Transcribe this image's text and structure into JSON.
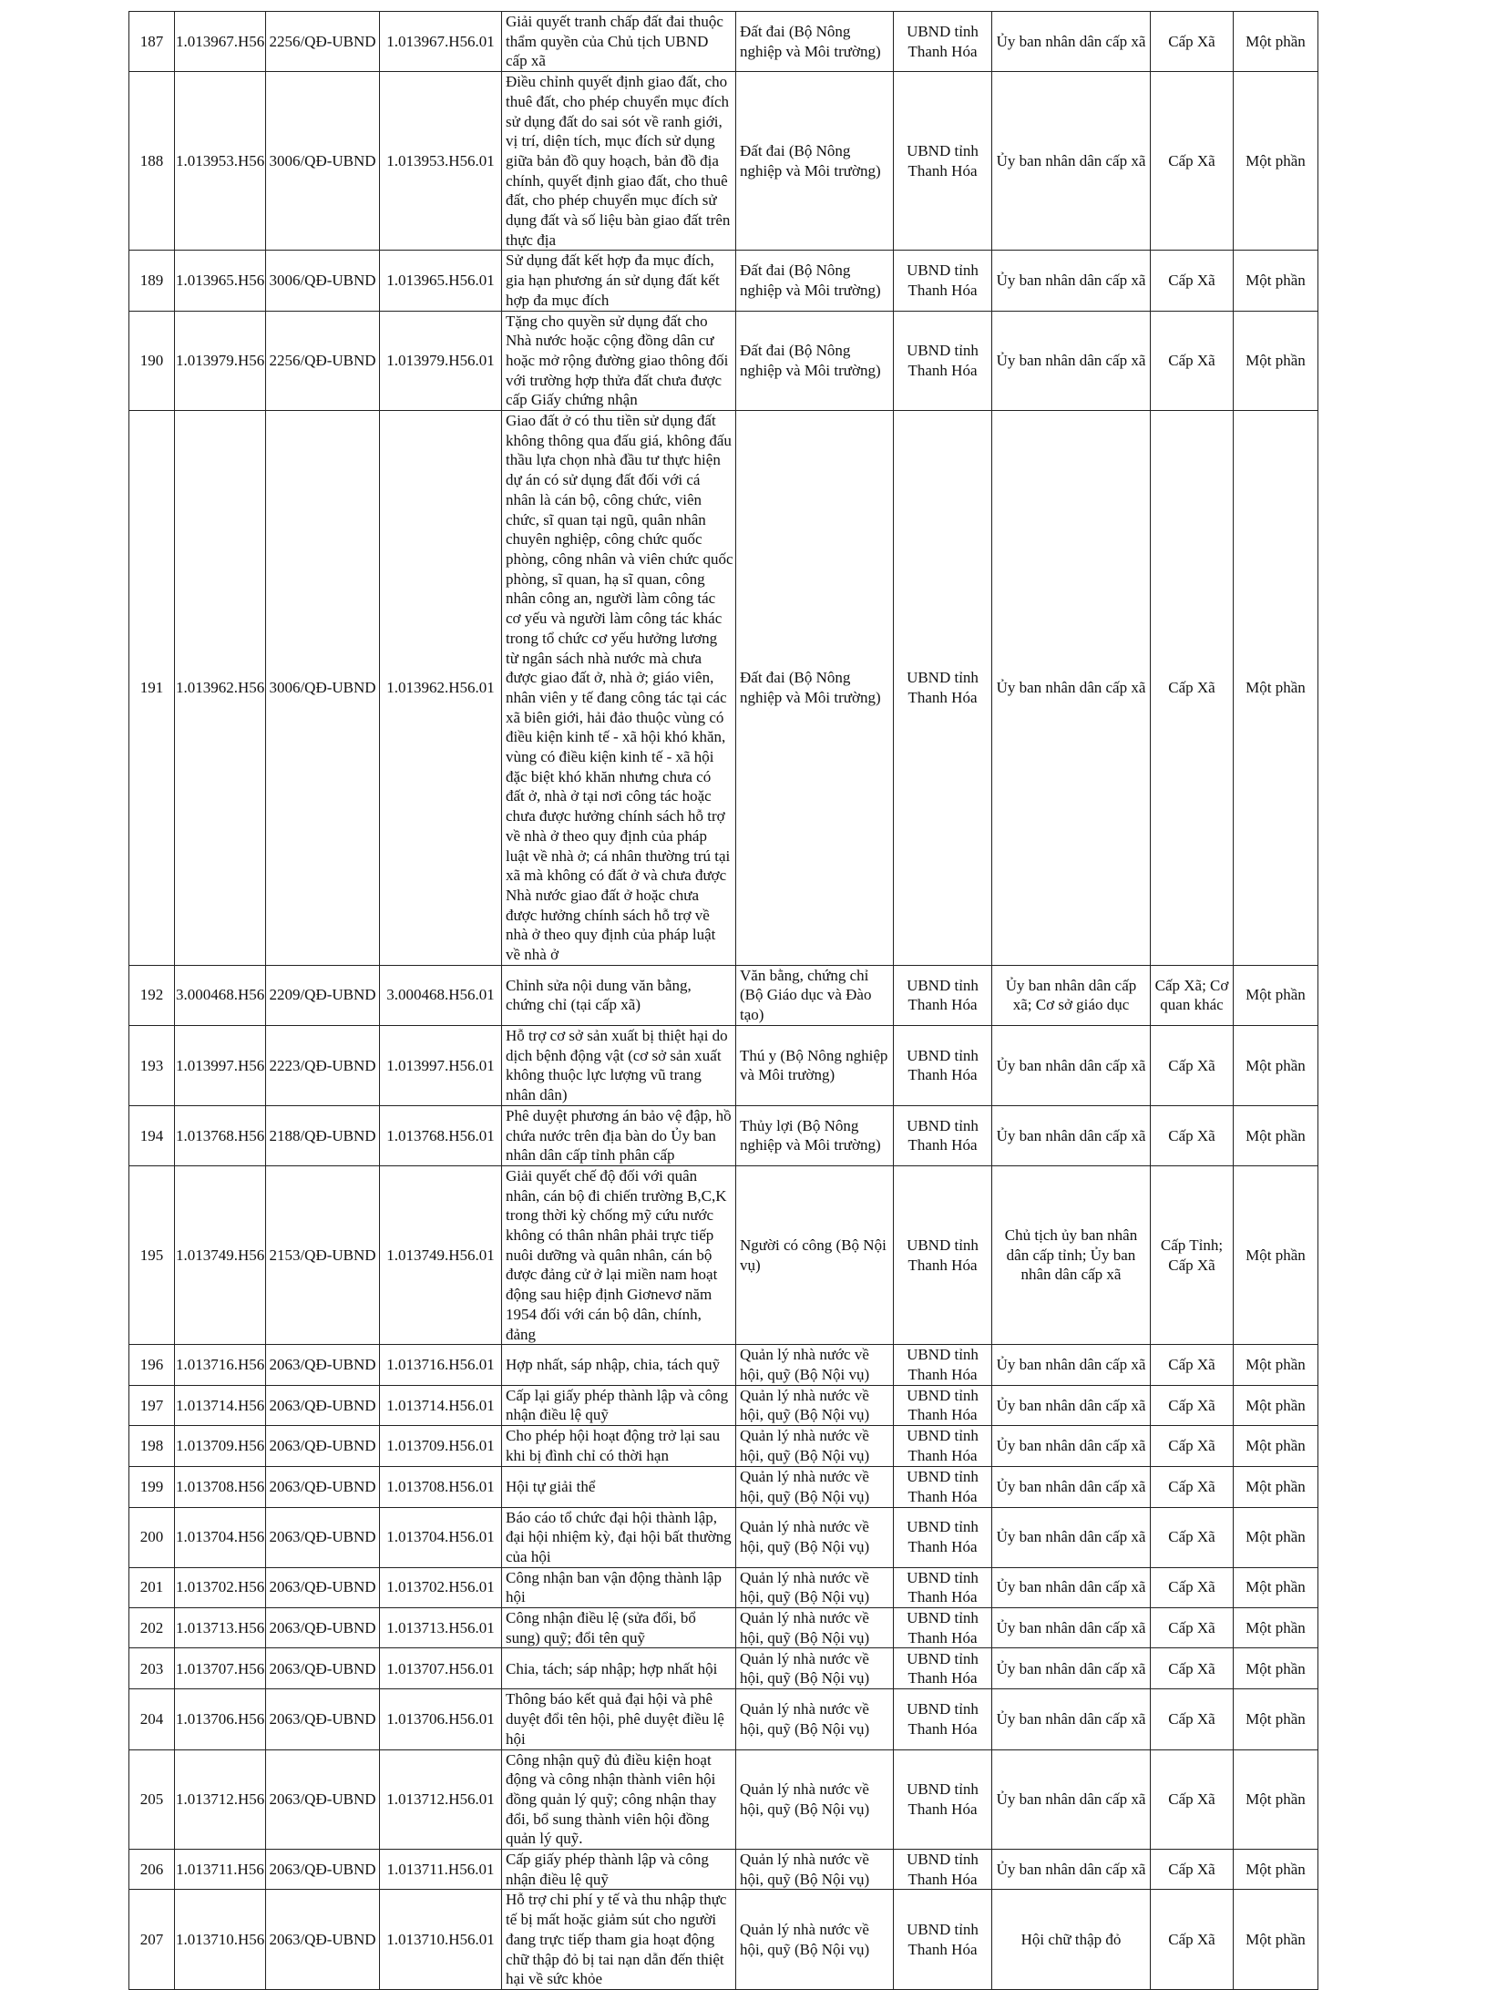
{
  "rows": [
    {
      "stt": "187",
      "code": "1.013967.H56",
      "decision": "2256/QĐ-UBND",
      "code2": "1.013967.H56.01",
      "name": "Giải quyết tranh chấp đất đai thuộc thẩm quyền của Chủ tịch UBND cấp xã",
      "field": "Đất đai (Bộ Nông nghiệp và Môi trường)",
      "agency": "UBND tỉnh Thanh Hóa",
      "executor": "Ủy ban nhân dân cấp xã",
      "level": "Cấp Xã",
      "scope": "Một phần"
    },
    {
      "stt": "188",
      "code": "1.013953.H56",
      "decision": "3006/QĐ-UBND",
      "code2": "1.013953.H56.01",
      "name": "Điều chỉnh quyết định giao đất, cho thuê đất, cho phép chuyển mục đích sử dụng đất do sai sót về ranh giới, vị trí, diện tích, mục đích sử dụng giữa bản đồ quy hoạch, bản đồ địa chính, quyết định giao đất, cho thuê đất, cho phép chuyển mục đích sử dụng đất và số liệu bàn giao đất trên thực địa",
      "field": "Đất đai (Bộ Nông nghiệp và Môi trường)",
      "agency": "UBND tỉnh Thanh Hóa",
      "executor": "Ủy ban nhân dân cấp xã",
      "level": "Cấp Xã",
      "scope": "Một phần"
    },
    {
      "stt": "189",
      "code": "1.013965.H56",
      "decision": "3006/QĐ-UBND",
      "code2": "1.013965.H56.01",
      "name": "Sử dụng đất kết hợp đa mục đích, gia hạn phương án sử dụng đất kết hợp đa mục đích",
      "field": "Đất đai (Bộ Nông nghiệp và Môi trường)",
      "agency": "UBND tỉnh Thanh Hóa",
      "executor": "Ủy ban nhân dân cấp xã",
      "level": "Cấp Xã",
      "scope": "Một phần"
    },
    {
      "stt": "190",
      "code": "1.013979.H56",
      "decision": "2256/QĐ-UBND",
      "code2": "1.013979.H56.01",
      "name": "Tặng cho quyền sử dụng đất cho Nhà nước hoặc cộng đồng dân cư hoặc mở rộng đường giao thông đối với trường hợp thửa đất chưa được cấp Giấy chứng nhận",
      "field": "Đất đai (Bộ Nông nghiệp và Môi trường)",
      "agency": "UBND tỉnh Thanh Hóa",
      "executor": "Ủy ban nhân dân cấp xã",
      "level": "Cấp Xã",
      "scope": "Một phần"
    },
    {
      "stt": "191",
      "code": "1.013962.H56",
      "decision": "3006/QĐ-UBND",
      "code2": "1.013962.H56.01",
      "name": "Giao đất ở có thu tiền sử dụng đất không thông qua đấu giá, không đấu thầu lựa chọn nhà đầu tư thực hiện dự án có sử dụng đất đối với cá nhân là cán bộ, công chức, viên chức, sĩ quan tại ngũ, quân nhân chuyên nghiệp, công chức quốc phòng, công nhân và viên chức quốc phòng, sĩ quan, hạ sĩ quan, công nhân công an, người làm công tác cơ yếu và người làm công tác khác trong tổ chức cơ yếu hưởng lương từ ngân sách nhà nước mà chưa được giao đất ở, nhà ở; giáo viên, nhân viên y tế đang công tác tại các xã biên giới, hải đảo thuộc vùng có điều kiện kinh tế - xã hội khó khăn, vùng có điều kiện kinh tế - xã hội đặc biệt khó khăn nhưng chưa có đất ở, nhà ở tại nơi công tác hoặc chưa được hưởng chính sách hỗ trợ về nhà ở theo quy định của pháp luật về nhà ở; cá nhân thường trú tại xã mà không có đất ở và chưa được Nhà nước giao đất ở hoặc chưa được hưởng chính sách hỗ trợ về nhà ở theo quy định của pháp luật về nhà ở",
      "field": "Đất đai (Bộ Nông nghiệp và Môi trường)",
      "agency": "UBND tỉnh Thanh Hóa",
      "executor": "Ủy ban nhân dân cấp xã",
      "level": "Cấp Xã",
      "scope": "Một phần"
    },
    {
      "stt": "192",
      "code": "3.000468.H56",
      "decision": "2209/QĐ-UBND",
      "code2": "3.000468.H56.01",
      "name": "Chỉnh sửa nội dung văn bằng, chứng chỉ (tại cấp xã)",
      "field": "Văn bằng, chứng chỉ (Bộ Giáo dục và Đào tạo)",
      "agency": "UBND tỉnh Thanh Hóa",
      "executor": "Ủy ban nhân dân cấp xã; Cơ sở giáo dục",
      "level": "Cấp Xã; Cơ quan khác",
      "scope": "Một phần"
    },
    {
      "stt": "193",
      "code": "1.013997.H56",
      "decision": "2223/QĐ-UBND",
      "code2": "1.013997.H56.01",
      "name": "Hỗ trợ cơ sở sản xuất bị thiệt hại do dịch bệnh động vật (cơ sở sản xuất không thuộc lực lượng vũ trang nhân dân)",
      "field": "Thú y (Bộ Nông nghiệp và Môi trường)",
      "agency": "UBND tỉnh Thanh Hóa",
      "executor": "Ủy ban nhân dân cấp xã",
      "level": "Cấp Xã",
      "scope": "Một phần"
    },
    {
      "stt": "194",
      "code": "1.013768.H56",
      "decision": "2188/QĐ-UBND",
      "code2": "1.013768.H56.01",
      "name": "Phê duyệt phương án bảo vệ đập, hồ chứa nước trên địa bàn do Ủy ban nhân dân cấp tỉnh phân cấp",
      "field": "Thủy lợi (Bộ Nông nghiệp và Môi trường)",
      "agency": "UBND tỉnh Thanh Hóa",
      "executor": "Ủy ban nhân dân cấp xã",
      "level": "Cấp Xã",
      "scope": "Một phần"
    },
    {
      "stt": "195",
      "code": "1.013749.H56",
      "decision": "2153/QĐ-UBND",
      "code2": "1.013749.H56.01",
      "name": "Giải quyết chế độ đối với quân nhân, cán bộ đi chiến trường B,C,K trong thời kỳ chống mỹ cứu nước không có thân nhân phải trực tiếp nuôi dưỡng và quân nhân, cán bộ được đảng cử ở lại miền nam hoạt động sau hiệp định Giơnevơ năm 1954 đối với cán bộ dân, chính, đảng",
      "field": "Người có công (Bộ Nội vụ)",
      "agency": "UBND tỉnh Thanh Hóa",
      "executor": "Chủ tịch ủy ban nhân dân cấp tỉnh; Ủy ban nhân dân cấp xã",
      "level": "Cấp Tỉnh; Cấp Xã",
      "scope": "Một phần"
    },
    {
      "stt": "196",
      "code": "1.013716.H56",
      "decision": "2063/QĐ-UBND",
      "code2": "1.013716.H56.01",
      "name": "Hợp nhất, sáp nhập, chia, tách quỹ",
      "field": "Quản lý nhà nước về hội, quỹ (Bộ Nội vụ)",
      "agency": "UBND tỉnh Thanh Hóa",
      "executor": "Ủy ban nhân dân cấp xã",
      "level": "Cấp Xã",
      "scope": "Một phần"
    },
    {
      "stt": "197",
      "code": "1.013714.H56",
      "decision": "2063/QĐ-UBND",
      "code2": "1.013714.H56.01",
      "name": "Cấp lại giấy phép thành lập và công nhận điều lệ quỹ",
      "field": "Quản lý nhà nước về hội, quỹ (Bộ Nội vụ)",
      "agency": "UBND tỉnh Thanh Hóa",
      "executor": "Ủy ban nhân dân cấp xã",
      "level": "Cấp Xã",
      "scope": "Một phần"
    },
    {
      "stt": "198",
      "code": "1.013709.H56",
      "decision": "2063/QĐ-UBND",
      "code2": "1.013709.H56.01",
      "name": "Cho phép hội hoạt động trở lại sau khi bị đình chỉ có thời hạn",
      "field": "Quản lý nhà nước về hội, quỹ (Bộ Nội vụ)",
      "agency": "UBND tỉnh Thanh Hóa",
      "executor": "Ủy ban nhân dân cấp xã",
      "level": "Cấp Xã",
      "scope": "Một phần"
    },
    {
      "stt": "199",
      "code": "1.013708.H56",
      "decision": "2063/QĐ-UBND",
      "code2": "1.013708.H56.01",
      "name": "Hội tự giải thể",
      "field": "Quản lý nhà nước về hội, quỹ (Bộ Nội vụ)",
      "agency": "UBND tỉnh Thanh Hóa",
      "executor": "Ủy ban nhân dân cấp xã",
      "level": "Cấp Xã",
      "scope": "Một phần"
    },
    {
      "stt": "200",
      "code": "1.013704.H56",
      "decision": "2063/QĐ-UBND",
      "code2": "1.013704.H56.01",
      "name": "Báo cáo tổ chức đại hội thành lập, đại hội nhiệm kỳ, đại hội bất thường của hội",
      "field": "Quản lý nhà nước về hội, quỹ (Bộ Nội vụ)",
      "agency": "UBND tỉnh Thanh Hóa",
      "executor": "Ủy ban nhân dân cấp xã",
      "level": "Cấp Xã",
      "scope": "Một phần"
    },
    {
      "stt": "201",
      "code": "1.013702.H56",
      "decision": "2063/QĐ-UBND",
      "code2": "1.013702.H56.01",
      "name": "Công nhận ban vận động thành lập hội",
      "field": "Quản lý nhà nước về hội, quỹ (Bộ Nội vụ)",
      "agency": "UBND tỉnh Thanh Hóa",
      "executor": "Ủy ban nhân dân cấp xã",
      "level": "Cấp Xã",
      "scope": "Một phần"
    },
    {
      "stt": "202",
      "code": "1.013713.H56",
      "decision": "2063/QĐ-UBND",
      "code2": "1.013713.H56.01",
      "name": "Công nhận điều lệ (sửa đổi, bổ sung) quỹ; đổi tên quỹ",
      "field": "Quản lý nhà nước về hội, quỹ (Bộ Nội vụ)",
      "agency": "UBND tỉnh Thanh Hóa",
      "executor": "Ủy ban nhân dân cấp xã",
      "level": "Cấp Xã",
      "scope": "Một phần"
    },
    {
      "stt": "203",
      "code": "1.013707.H56",
      "decision": "2063/QĐ-UBND",
      "code2": "1.013707.H56.01",
      "name": "Chia, tách; sáp nhập; hợp nhất hội",
      "field": "Quản lý nhà nước về hội, quỹ (Bộ Nội vụ)",
      "agency": "UBND tỉnh Thanh Hóa",
      "executor": "Ủy ban nhân dân cấp xã",
      "level": "Cấp Xã",
      "scope": "Một phần"
    },
    {
      "stt": "204",
      "code": "1.013706.H56",
      "decision": "2063/QĐ-UBND",
      "code2": "1.013706.H56.01",
      "name": "Thông báo kết quả đại hội và phê duyệt đổi tên hội, phê duyệt điều lệ hội",
      "field": "Quản lý nhà nước về hội, quỹ (Bộ Nội vụ)",
      "agency": "UBND tỉnh Thanh Hóa",
      "executor": "Ủy ban nhân dân cấp xã",
      "level": "Cấp Xã",
      "scope": "Một phần"
    },
    {
      "stt": "205",
      "code": "1.013712.H56",
      "decision": "2063/QĐ-UBND",
      "code2": "1.013712.H56.01",
      "name": "Công nhận quỹ đủ điều kiện hoạt động và công nhận thành viên hội đồng quản lý quỹ; công nhận thay đổi, bổ sung thành viên hội đồng quản lý quỹ.",
      "field": "Quản lý nhà nước về hội, quỹ (Bộ Nội vụ)",
      "agency": "UBND tỉnh Thanh Hóa",
      "executor": "Ủy ban nhân dân cấp xã",
      "level": "Cấp Xã",
      "scope": "Một phần"
    },
    {
      "stt": "206",
      "code": "1.013711.H56",
      "decision": "2063/QĐ-UBND",
      "code2": "1.013711.H56.01",
      "name": "Cấp giấy phép thành lập và công nhận điều lệ quỹ",
      "field": "Quản lý nhà nước về hội, quỹ (Bộ Nội vụ)",
      "agency": "UBND tỉnh Thanh Hóa",
      "executor": "Ủy ban nhân dân cấp xã",
      "level": "Cấp Xã",
      "scope": "Một phần"
    },
    {
      "stt": "207",
      "code": "1.013710.H56",
      "decision": "2063/QĐ-UBND",
      "code2": "1.013710.H56.01",
      "name": "Hỗ trợ chi phí y tế và thu nhập thực tế bị mất hoặc giảm sút cho người đang trực tiếp tham gia hoạt động chữ thập đỏ bị tai nạn dẫn đến thiệt hại về sức khỏe",
      "field": "Quản lý nhà nước về hội, quỹ (Bộ Nội vụ)",
      "agency": "UBND tỉnh Thanh Hóa",
      "executor": "Hội chữ thập đỏ",
      "level": "Cấp Xã",
      "scope": "Một phần"
    }
  ]
}
